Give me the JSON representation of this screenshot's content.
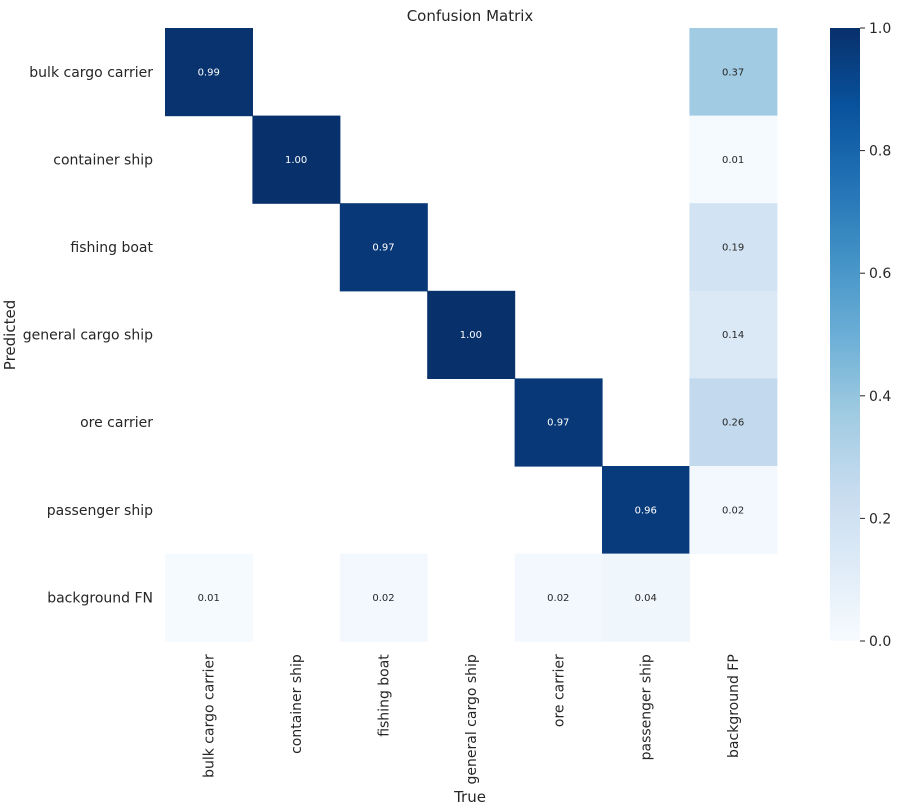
{
  "chart_data": {
    "type": "heatmap",
    "title": "Confusion Matrix",
    "xlabel": "True",
    "ylabel": "Predicted",
    "x_categories": [
      "bulk cargo carrier",
      "container ship",
      "fishing boat",
      "general cargo ship",
      "ore carrier",
      "passenger ship",
      "background FP"
    ],
    "y_categories": [
      "bulk cargo carrier",
      "container ship",
      "fishing boat",
      "general cargo ship",
      "ore carrier",
      "passenger ship",
      "background FN"
    ],
    "values": [
      [
        0.99,
        null,
        null,
        null,
        null,
        null,
        0.37
      ],
      [
        null,
        1.0,
        null,
        null,
        null,
        null,
        0.01
      ],
      [
        null,
        null,
        0.97,
        null,
        null,
        null,
        0.19
      ],
      [
        null,
        null,
        null,
        1.0,
        null,
        null,
        0.14
      ],
      [
        null,
        null,
        null,
        null,
        0.97,
        null,
        0.26
      ],
      [
        null,
        null,
        null,
        null,
        null,
        0.96,
        0.02
      ],
      [
        0.01,
        null,
        0.02,
        null,
        0.02,
        0.04,
        null
      ]
    ],
    "colorbar": {
      "range": [
        0.0,
        1.0
      ],
      "ticks": [
        "0.0",
        "0.2",
        "0.4",
        "0.6",
        "0.8",
        "1.0"
      ],
      "colormap": "Blues"
    }
  }
}
